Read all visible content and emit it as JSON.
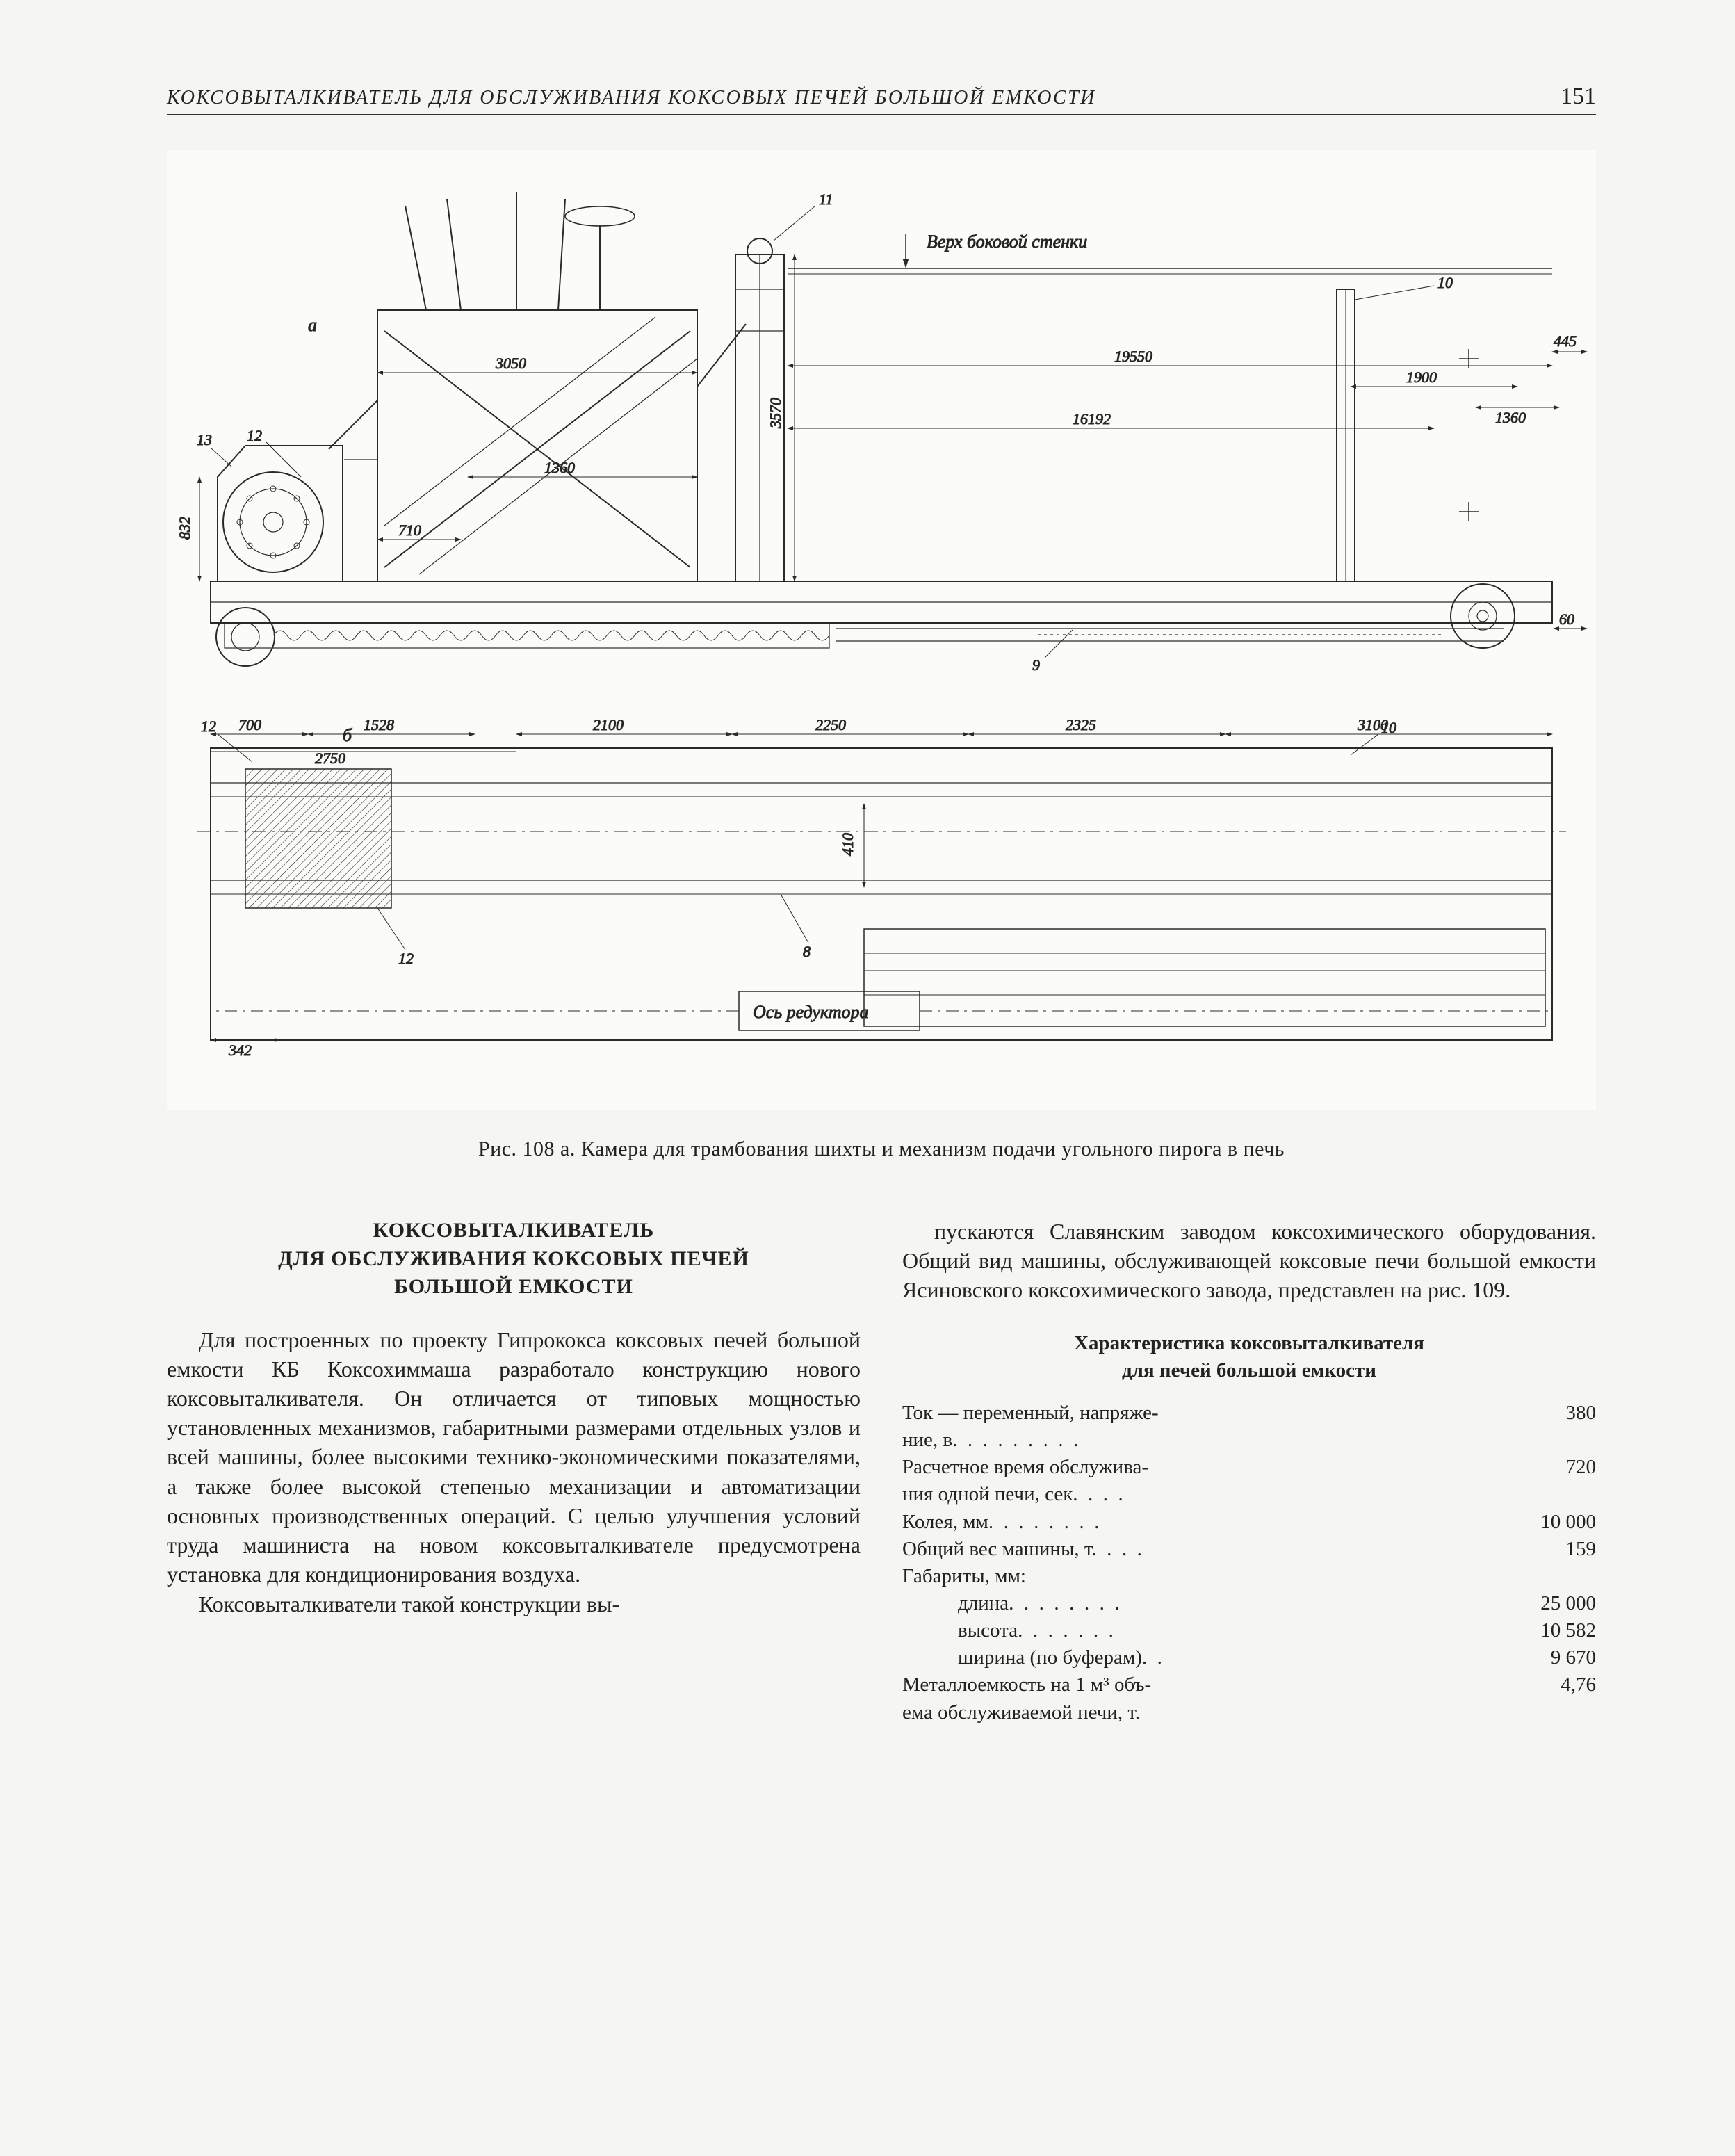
{
  "page_number": "151",
  "running_head": "КОКСОВЫТАЛКИВАТЕЛЬ ДЛЯ ОБСЛУЖИВАНИЯ КОКСОВЫХ ПЕЧЕЙ БОЛЬШОЙ ЕМКОСТИ",
  "figure": {
    "caption": "Рис. 108 а. Камера для трамбования шихты и механизм подачи угольного пирога в печь",
    "labels": {
      "a": "а",
      "b": "б",
      "top_wall": "Верх боковой стенки",
      "reducer_axis": "Ось редуктора"
    },
    "callouts": [
      "8",
      "9",
      "10",
      "10",
      "11",
      "12",
      "12",
      "13"
    ],
    "dimensions_top": {
      "height_overall": "3570",
      "height_left": "832",
      "width_cab": "3050",
      "inner_1360": "1360",
      "base_710": "710",
      "span_19550": "19550",
      "span_16192": "16192",
      "right_1900": "1900",
      "right_1360": "1360",
      "right_445": "445",
      "right_60": "60"
    },
    "dimensions_bottom": {
      "d700": "700",
      "d1528": "1528",
      "d2750": "2750",
      "d342": "342",
      "d2100": "2100",
      "d2250": "2250",
      "d2325": "2325",
      "d3100": "3100",
      "h410": "410"
    },
    "style": {
      "stroke": "#2a2a2a",
      "thin": 1.2,
      "med": 2,
      "thick": 3,
      "bg": "#fbfbf8"
    }
  },
  "article": {
    "heading": "КОКСОВЫТАЛКИВАТЕЛЬ\nДЛЯ ОБСЛУЖИВАНИЯ КОКСОВЫХ ПЕЧЕЙ\nБОЛЬШОЙ ЕМКОСТИ",
    "col1_p1": "Для построенных по проекту Гипрококса коксовых печей большой емкости КБ Коксохиммаша разработало конструкцию нового коксовыталкивателя. Он отличается от типовых мощностью установленных механизмов, габаритными размерами отдельных узлов и всей машины, более высокими технико-экономическими показателями, а также более высокой степенью механизации и автоматизации основных производственных операций. С целью улучшения условий труда машиниста на новом коксовыталкивателе предусмотрена установка для кондиционирования воздуха.",
    "col1_p2": "Коксовыталкиватели такой конструкции вы-",
    "col2_p1": "пускаются Славянским заводом коксохимического оборудования. Общий вид машины, обслуживающей коксовые печи большой емкости Ясиновского коксохимического завода, представлен на рис. 109.",
    "spec_title": "Характеристика коксовыталкивателя\nдля печей большой емкости",
    "specs": [
      {
        "label": "Ток — переменный, напряже-\nние, в.  .  .  .  .  .  .  .  .",
        "value": "380"
      },
      {
        "label": "Расчетное время обслужива-\nния одной печи, сек.  .  .  .",
        "value": "720"
      },
      {
        "label": "Колея, мм.  .  .  .  .  .  .  .",
        "value": "10 000"
      },
      {
        "label": "Общий вес машины, т.  .  .  .",
        "value": "159"
      },
      {
        "label": "Габариты, мм:",
        "value": ""
      },
      {
        "label": "длина.  .  .  .  .  .  .  .",
        "value": "25 000",
        "indent": 1
      },
      {
        "label": "высота.  .  .  .  .  .  .",
        "value": "10 582",
        "indent": 1
      },
      {
        "label": "ширина (по буферам).  .",
        "value": "9 670",
        "indent": 1
      },
      {
        "label": "Металлоемкость на 1 м³ объ-\nема обслуживаемой печи, т.",
        "value": "4,76"
      }
    ]
  }
}
